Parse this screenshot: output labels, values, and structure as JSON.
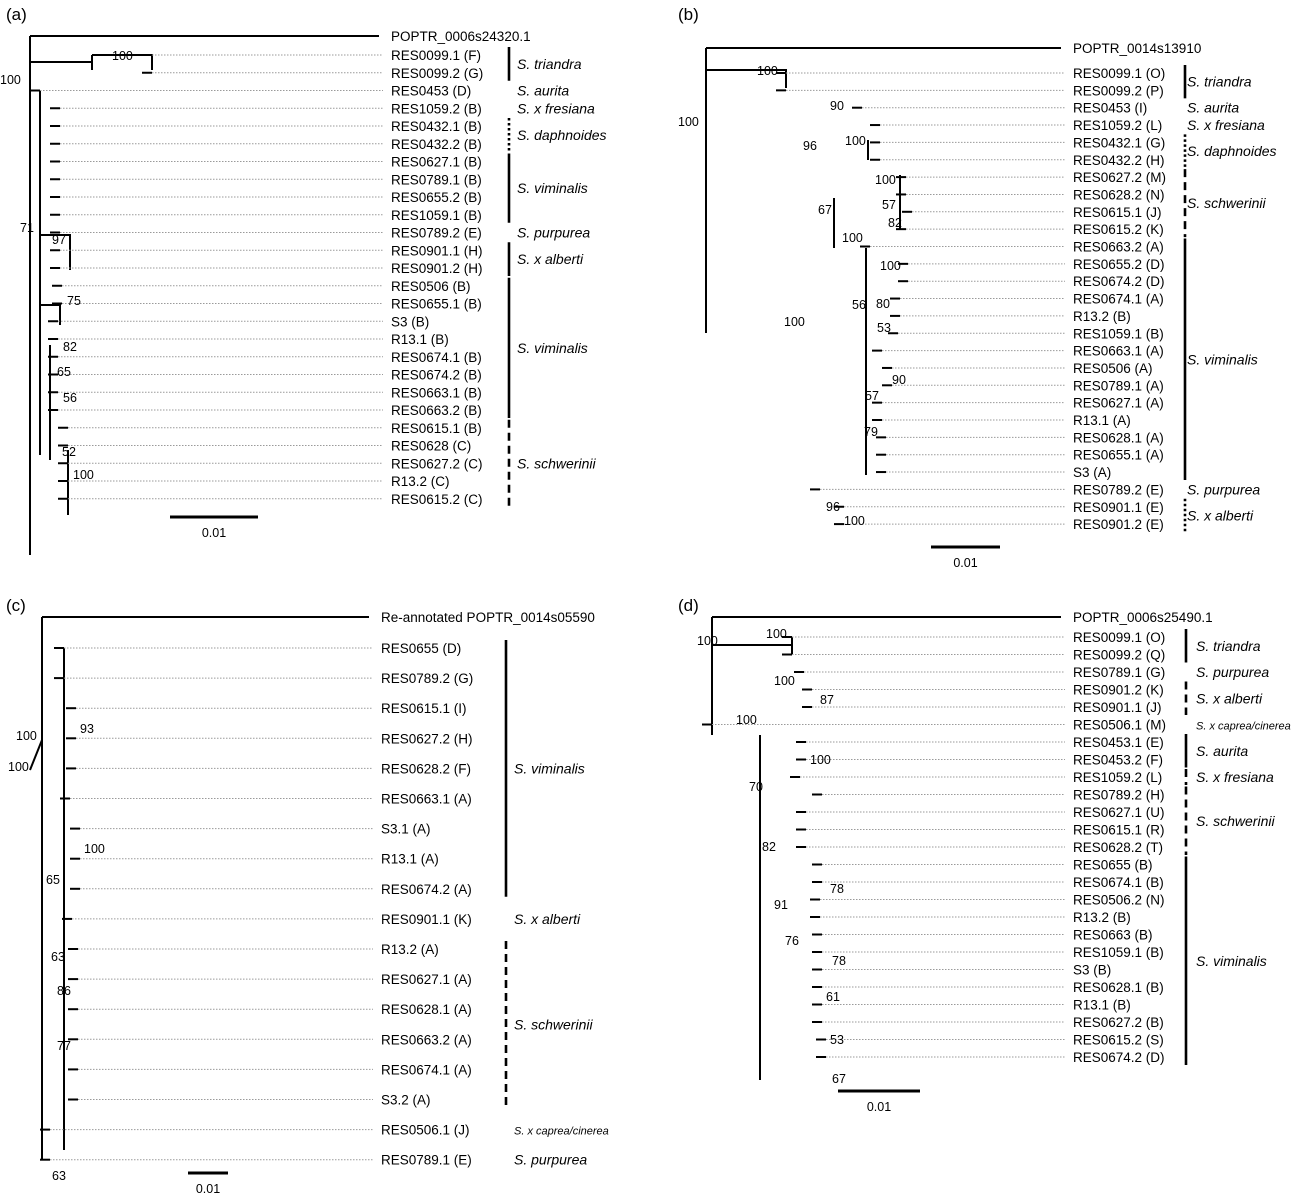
{
  "panels": [
    {
      "id": "a",
      "label": "(a)",
      "root_label": "POPTR_0006s24320.1",
      "tips": [
        "RES0099.1 (F)",
        "RES0099.2 (G)",
        "RES0453 (D)",
        "RES1059.2 (B)",
        "RES0432.1 (B)",
        "RES0432.2 (B)",
        "RES0627.1 (B)",
        "RES0789.1 (B)",
        "RES0655.2 (B)",
        "RES1059.1 (B)",
        "RES0789.2 (E)",
        "RES0901.1 (H)",
        "RES0901.2 (H)",
        "RES0506 (B)",
        "RES0655.1 (B)",
        "S3 (B)",
        "R13.1 (B)",
        "RES0674.1 (B)",
        "RES0674.2 (B)",
        "RES0663.1 (B)",
        "RES0663.2 (B)",
        "RES0615.1 (B)",
        "RES0628 (C)",
        "RES0627.2 (C)",
        "R13.2 (C)",
        "RES0615.2 (C)"
      ],
      "bootstraps": [
        "100",
        "100",
        "71",
        "97",
        "75",
        "82",
        "65",
        "56",
        "52",
        "100"
      ],
      "species": [
        {
          "name": "S. triandra",
          "style": "solid",
          "small": false
        },
        {
          "name": "S. aurita",
          "style": "none",
          "small": false
        },
        {
          "name": "S. x fresiana",
          "style": "none",
          "small": false
        },
        {
          "name": "S. daphnoides",
          "style": "dotted",
          "small": false
        },
        {
          "name": "S. viminalis",
          "style": "solid",
          "small": false
        },
        {
          "name": "S. purpurea",
          "style": "none",
          "small": false
        },
        {
          "name": "S. x alberti",
          "style": "solid",
          "small": false
        },
        {
          "name": "S. viminalis",
          "style": "solid",
          "small": false
        },
        {
          "name": "S. schwerinii",
          "style": "dashed",
          "small": false
        }
      ],
      "scale_label": "0.01"
    },
    {
      "id": "b",
      "label": "(b)",
      "root_label": "POPTR_0014s13910",
      "tips": [
        "RES0099.1 (O)",
        "RES0099.2 (P)",
        "RES0453 (I)",
        "RES1059.2 (L)",
        "RES0432.1 (G)",
        "RES0432.2 (H)",
        "RES0627.2 (M)",
        "RES0628.2 (N)",
        "RES0615.1 (J)",
        "RES0615.2 (K)",
        "RES0663.2 (A)",
        "RES0655.2 (D)",
        "RES0674.2 (D)",
        "RES0674.1 (A)",
        "R13.2 (B)",
        "RES1059.1 (B)",
        "RES0663.1 (A)",
        "RES0506 (A)",
        "RES0789.1 (A)",
        "RES0627.1 (A)",
        "R13.1 (A)",
        "RES0628.1 (A)",
        "RES0655.1 (A)",
        "S3 (A)",
        "RES0789.2 (E)",
        "RES0901.1 (E)",
        "RES0901.2 (E)"
      ],
      "bootstraps": [
        "100",
        "100",
        "90",
        "96",
        "100",
        "67",
        "100",
        "57",
        "82",
        "100",
        "100",
        "56",
        "80",
        "53",
        "100",
        "90",
        "57",
        "79",
        "96",
        "100"
      ],
      "species": [
        {
          "name": "S. triandra",
          "style": "solid",
          "small": false
        },
        {
          "name": "S. aurita",
          "style": "none",
          "small": false
        },
        {
          "name": "S. x fresiana",
          "style": "none",
          "small": false
        },
        {
          "name": "S. daphnoides",
          "style": "dotted",
          "small": false
        },
        {
          "name": "S. schwerinii",
          "style": "dashed",
          "small": false
        },
        {
          "name": "S. viminalis",
          "style": "solid",
          "small": false
        },
        {
          "name": "S. purpurea",
          "style": "none",
          "small": false
        },
        {
          "name": "S. x alberti",
          "style": "dotted",
          "small": false
        }
      ],
      "scale_label": "0.01"
    },
    {
      "id": "c",
      "label": "(c)",
      "root_label": "Re-annotated POPTR_0014s05590",
      "tips": [
        "RES0655 (D)",
        "RES0789.2 (G)",
        "RES0615.1 (I)",
        "RES0627.2 (H)",
        "RES0628.2 (F)",
        "RES0663.1 (A)",
        "S3.1 (A)",
        "R13.1 (A)",
        "RES0674.2 (A)",
        "RES0901.1 (K)",
        "R13.2 (A)",
        "RES0627.1 (A)",
        "RES0628.1 (A)",
        "RES0663.2 (A)",
        "RES0674.1 (A)",
        "S3.2 (A)",
        "RES0506.1 (J)",
        "RES0789.1 (E)"
      ],
      "bootstraps": [
        "100",
        "100",
        "93",
        "100",
        "65",
        "63",
        "86",
        "77",
        "63"
      ],
      "species": [
        {
          "name": "S. viminalis",
          "style": "solid",
          "small": false
        },
        {
          "name": "S. x alberti",
          "style": "none",
          "small": false
        },
        {
          "name": "S. schwerinii",
          "style": "dashed",
          "small": false
        },
        {
          "name": "S. x caprea/cinerea",
          "style": "none",
          "small": true
        },
        {
          "name": "S. purpurea",
          "style": "none",
          "small": false
        }
      ],
      "scale_label": "0.01"
    },
    {
      "id": "d",
      "label": "(d)",
      "root_label": "POPTR_0006s25490.1",
      "tips": [
        "RES0099.1 (O)",
        "RES0099.2 (Q)",
        "RES0789.1 (G)",
        "RES0901.2 (K)",
        "RES0901.1 (J)",
        "RES0506.1 (M)",
        "RES0453.1 (E)",
        "RES0453.2 (F)",
        "RES1059.2 (L)",
        "RES0789.2 (H)",
        "RES0627.1 (U)",
        "RES0615.1 (R)",
        "RES0628.2 (T)",
        "RES0655 (B)",
        "RES0674.1 (B)",
        "RES0506.2 (N)",
        "R13.2 (B)",
        "RES0663 (B)",
        "RES1059.1 (B)",
        "S3 (B)",
        "RES0628.1 (B)",
        "R13.1 (B)",
        "RES0627.2 (B)",
        "RES0615.2 (S)",
        "RES0674.2 (D)"
      ],
      "bootstraps": [
        "100",
        "100",
        "100",
        "87",
        "100",
        "100",
        "70",
        "82",
        "91",
        "78",
        "76",
        "78",
        "61",
        "53",
        "67"
      ],
      "species": [
        {
          "name": "S. triandra",
          "style": "solid",
          "small": false
        },
        {
          "name": "S. purpurea",
          "style": "none",
          "small": false
        },
        {
          "name": "S. x alberti",
          "style": "dashed",
          "small": false
        },
        {
          "name": "S. x caprea/cinerea",
          "style": "none",
          "small": true
        },
        {
          "name": "S. aurita",
          "style": "solid",
          "small": false
        },
        {
          "name": "S. x fresiana",
          "style": "dashed",
          "small": false
        },
        {
          "name": "S. schwerinii",
          "style": "dashed",
          "small": false
        },
        {
          "name": "S. viminalis",
          "style": "solid",
          "small": false
        }
      ],
      "scale_label": "0.01"
    }
  ]
}
